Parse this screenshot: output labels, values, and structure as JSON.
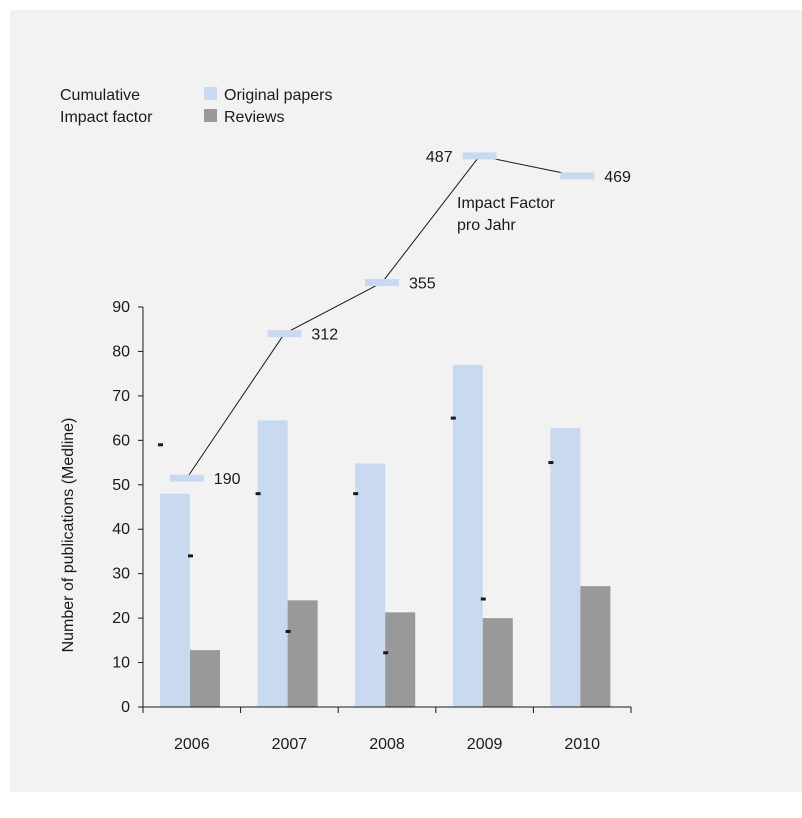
{
  "colors": {
    "background": "#f2f2f2",
    "original_papers": "#c9daf0",
    "reviews": "#999999",
    "impact_marker": "#c9daf0",
    "line": "#1a1a1a",
    "axis": "#1a1a1a",
    "text": "#1a1a1a"
  },
  "chart_data": {
    "type": "bar",
    "categories": [
      "2006",
      "2007",
      "2008",
      "2009",
      "2010"
    ],
    "xlabel": "",
    "ylabel": "Number of publications (Medline)",
    "ylim": [
      0,
      90
    ],
    "y_ticks": [
      0,
      10,
      20,
      30,
      40,
      50,
      60,
      70,
      80,
      90
    ],
    "grid": false,
    "legend": {
      "position": "top-left",
      "title_line1": "Cumulative",
      "title_line2": "Impact factor"
    },
    "series": [
      {
        "name": "Original papers",
        "values": [
          48,
          64.5,
          54.8,
          77,
          62.8
        ]
      },
      {
        "name": "Reviews",
        "values": [
          12.8,
          24,
          21.3,
          20,
          27.2
        ]
      }
    ],
    "impact_factor": {
      "label_line1": "Impact Factor",
      "label_line2": "pro Jahr",
      "values": [
        59,
        48,
        48,
        65,
        55
      ],
      "reviews_dash_values": [
        34,
        17,
        12.2,
        24.3
      ]
    },
    "cumulative_impact_factor": {
      "values": [
        190,
        312,
        355,
        487,
        469
      ],
      "labels": [
        "190",
        "312",
        "355",
        "487",
        "469"
      ],
      "plot_positions": [
        51.5,
        84,
        95.5,
        124,
        119.5
      ]
    }
  }
}
